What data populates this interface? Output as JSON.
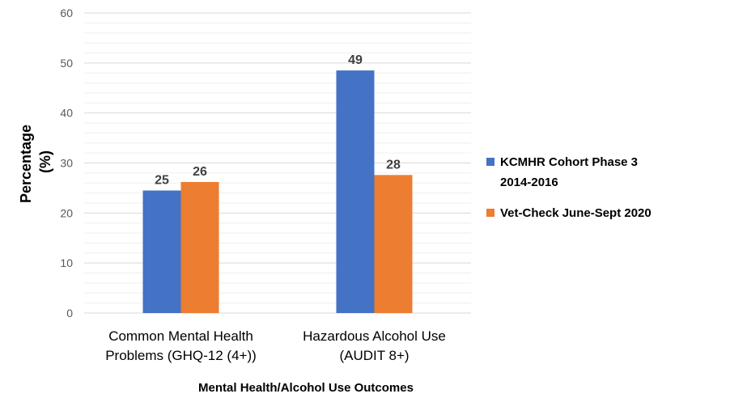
{
  "chart_data": {
    "type": "bar",
    "title": "",
    "xlabel": "Mental Health/Alcohol Use Outcomes",
    "ylabel_lines": [
      "Percentage",
      "(%)"
    ],
    "ylim": [
      0,
      60
    ],
    "yticks": [
      0,
      10,
      20,
      30,
      40,
      50,
      60
    ],
    "grid": true,
    "legend_position": "right",
    "categories": [
      [
        "Common Mental Health",
        "Problems (GHQ-12 (4+))"
      ],
      [
        "Hazardous Alcohol Use",
        "(AUDIT 8+)"
      ]
    ],
    "series": [
      {
        "name_lines": [
          "KCMHR Cohort Phase 3",
          "2014-2016"
        ],
        "color": "#4472C4",
        "values": [
          24.5,
          48.5
        ],
        "labels": [
          "25",
          "49"
        ]
      },
      {
        "name_lines": [
          "Vet-Check June-Sept 2020"
        ],
        "color": "#ED7D31",
        "values": [
          26.2,
          27.6
        ],
        "labels": [
          "26",
          "28"
        ]
      }
    ]
  }
}
